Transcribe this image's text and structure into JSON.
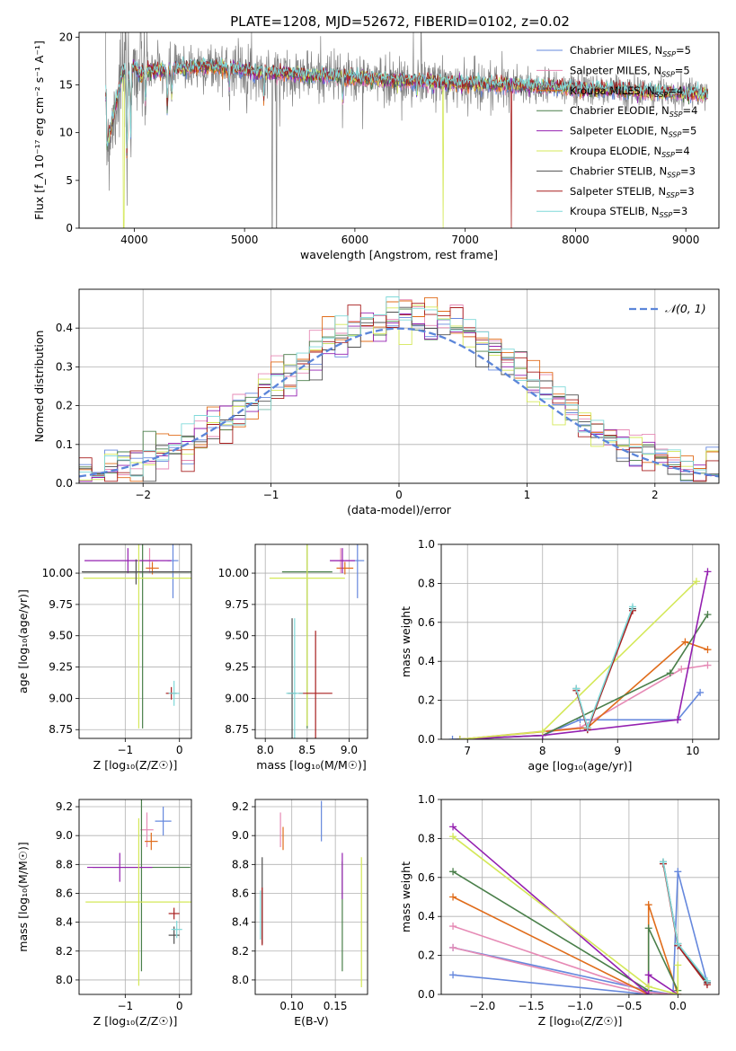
{
  "suptitle": "PLATE=1208, MJD=52672, FIBERID=0102, z=0.02",
  "colors": [
    "#6688dd",
    "#e68ab5",
    "#e06c1a",
    "#4a7f4a",
    "#9420b0",
    "#d4e858",
    "#505050",
    "#a81f1f",
    "#7fd9d9"
  ],
  "chart_data": [
    {
      "id": "spectrum",
      "type": "line",
      "title": "PLATE=1208, MJD=52672, FIBERID=0102, z=0.02",
      "xlabel": "wavelength [Angstrom, rest frame]",
      "ylabel": "Flux [f_λ 10⁻¹⁷ erg cm⁻² s⁻¹ A⁻¹]",
      "xlim": [
        3500,
        9300
      ],
      "ylim": [
        0,
        20.5
      ],
      "xticks": [
        "4000",
        "5000",
        "6000",
        "7000",
        "8000",
        "9000"
      ],
      "xtick_values": [
        4000,
        5000,
        6000,
        7000,
        8000,
        9000
      ],
      "yticks": [
        "0",
        "5",
        "10",
        "15",
        "20"
      ],
      "ytick_values": [
        0,
        5,
        10,
        15,
        20
      ],
      "grid": false,
      "legend_position": "top-right",
      "legend": [
        "Chabrier MILES, N_SSP=5",
        "Salpeter MILES, N_SSP=5",
        "Kroupa MILES, N_SSP=4",
        "Chabrier ELODIE, N_SSP=4",
        "Salpeter ELODIE, N_SSP=5",
        "Kroupa ELODIE, N_SSP=4",
        "Chabrier STELIB, N_SSP=3",
        "Salpeter STELIB, N_SSP=3",
        "Kroupa STELIB, N_SSP=3"
      ],
      "model_x": [
        3750,
        3800,
        3850,
        3900,
        3950,
        4000,
        4050,
        4100,
        4200,
        4300,
        4400,
        4500,
        4600,
        4700,
        4800,
        4900,
        5000,
        5100,
        5200,
        5300,
        5400,
        5500,
        5600,
        5700,
        5800,
        5900,
        6000,
        6100,
        6200,
        6300,
        6400,
        6500,
        6600,
        6700,
        6800,
        6900,
        7000,
        7100,
        7200,
        7300,
        7400,
        7500,
        7600,
        7700,
        7800,
        7900,
        8000,
        8200,
        8400,
        8600,
        8800,
        9000,
        9200
      ],
      "model_y": [
        8.5,
        11,
        14,
        16.5,
        16,
        17,
        16,
        16.5,
        16.5,
        16.5,
        16.7,
        16.8,
        16.9,
        16.9,
        16.8,
        16.8,
        16.6,
        16.4,
        16.3,
        16.2,
        16.2,
        16.1,
        16,
        16,
        15.9,
        15.8,
        15.7,
        15.6,
        15.6,
        15.5,
        15.4,
        15.4,
        15.4,
        15.3,
        15.2,
        15.1,
        15.1,
        15.1,
        15,
        15,
        15,
        14.9,
        14.9,
        14.8,
        14.8,
        14.7,
        14.6,
        14.5,
        14.4,
        14.3,
        14.2,
        14.1,
        14
      ],
      "absorption_lines": [
        {
          "x": 3934,
          "depth": 9.5
        },
        {
          "x": 3968,
          "depth": 6.5
        },
        {
          "x": 4102,
          "depth": 3.5
        },
        {
          "x": 4300,
          "depth": 4.5
        },
        {
          "x": 4340,
          "depth": 2.5
        },
        {
          "x": 4861,
          "depth": 2
        },
        {
          "x": 5175,
          "depth": 3
        },
        {
          "x": 5890,
          "depth": 2.5
        },
        {
          "x": 6563,
          "depth": 1.5
        }
      ],
      "observed_gaps": [
        {
          "x": 5250,
          "flux": 0
        },
        {
          "x": 5290,
          "flux": 0
        }
      ],
      "observed_spikes": [
        {
          "x": 6530,
          "flux": 20.5
        },
        {
          "x": 6600,
          "flux": 20.5
        }
      ],
      "model_dropouts": [
        {
          "x": 3905,
          "series": 5
        },
        {
          "x": 6800,
          "series": 5
        },
        {
          "x": 7420,
          "series": 7
        }
      ]
    },
    {
      "id": "residuals",
      "type": "line",
      "xlabel": "(data-model)/error",
      "ylabel": "Normed distribution",
      "xlim": [
        -2.5,
        2.5
      ],
      "ylim": [
        0,
        0.5
      ],
      "xticks": [
        "−2",
        "−1",
        "0",
        "1",
        "2"
      ],
      "xtick_values": [
        -2,
        -1,
        0,
        1,
        2
      ],
      "yticks": [
        "0.0",
        "0.1",
        "0.2",
        "0.3",
        "0.4"
      ],
      "ytick_values": [
        0,
        0.1,
        0.2,
        0.3,
        0.4
      ],
      "grid": true,
      "legend_position": "top-right",
      "legend": [
        "𝒩(0, 1)"
      ],
      "gaussian_color": "#5b85d9",
      "bin_width": 0.1
    },
    {
      "id": "age-vs-Z",
      "type": "scatter",
      "xlabel": "Z [log₁₀(Z/Z☉)]",
      "ylabel": "age  [log₁₀(age/yr)]",
      "xlim": [
        -1.85,
        0.22
      ],
      "ylim": [
        8.68,
        10.23
      ],
      "xticks": [
        "−1",
        "0"
      ],
      "xtick_values": [
        -1,
        0
      ],
      "yticks": [
        "8.75",
        "9.00",
        "9.25",
        "9.50",
        "9.75",
        "10.00"
      ],
      "ytick_values": [
        8.75,
        9.0,
        9.25,
        9.5,
        9.75,
        10.0
      ],
      "grid": true,
      "points": [
        {
          "series": 0,
          "x": -0.12,
          "y": 10.1,
          "xerr": 0.1,
          "yerr": 0.3
        },
        {
          "series": 1,
          "x": -0.55,
          "y": 10.1,
          "xerr": 0.15,
          "yerr": 0.1
        },
        {
          "series": 2,
          "x": -0.5,
          "y": 10.04,
          "xerr": 0.12,
          "yerr": 0.05
        },
        {
          "series": 3,
          "x": -0.68,
          "y": 10.01,
          "xerr": 1.1,
          "yerr": 1.25
        },
        {
          "series": 4,
          "x": -0.95,
          "y": 10.1,
          "xerr": 0.8,
          "yerr": 0.1
        },
        {
          "series": 5,
          "x": -0.75,
          "y": 9.96,
          "xerr": 1.02,
          "yerr": 1.2
        },
        {
          "series": 6,
          "x": -0.8,
          "y": 10.01,
          "xerr": 1.0,
          "yerr": 0.1
        },
        {
          "series": 7,
          "x": -0.15,
          "y": 9.04,
          "xerr": 0.1,
          "yerr": 0.05
        },
        {
          "series": 8,
          "x": -0.1,
          "y": 9.04,
          "xerr": 0.1,
          "yerr": 0.1
        }
      ]
    },
    {
      "id": "age-vs-mass",
      "type": "scatter",
      "xlabel": "mass [log₁₀(M/M☉)]",
      "ylabel": "",
      "xlim": [
        7.88,
        9.22
      ],
      "ylim": [
        8.68,
        10.23
      ],
      "xticks": [
        "8.0",
        "8.5",
        "9.0"
      ],
      "xtick_values": [
        8.0,
        8.5,
        9.0
      ],
      "yticks": [
        "8.75",
        "9.00",
        "9.25",
        "9.50",
        "9.75",
        "10.00"
      ],
      "ytick_values": [
        8.75,
        9.0,
        9.25,
        9.5,
        9.75,
        10.0
      ],
      "grid": true,
      "points": [
        {
          "series": 0,
          "x": 9.1,
          "y": 10.1,
          "xerr": 0.08,
          "yerr": 0.3
        },
        {
          "series": 1,
          "x": 8.9,
          "y": 10.1,
          "xerr": 0.12,
          "yerr": 0.1
        },
        {
          "series": 2,
          "x": 8.95,
          "y": 10.04,
          "xerr": 0.1,
          "yerr": 0.05
        },
        {
          "series": 3,
          "x": 8.5,
          "y": 10.01,
          "xerr": 0.3,
          "yerr": 1.25
        },
        {
          "series": 4,
          "x": 8.92,
          "y": 10.1,
          "xerr": 0.15,
          "yerr": 0.1
        },
        {
          "series": 5,
          "x": 8.5,
          "y": 9.96,
          "xerr": 0.45,
          "yerr": 1.18
        },
        {
          "series": 6,
          "x": 8.32,
          "y": 9.04,
          "xerr": 0.05,
          "yerr": 0.6
        },
        {
          "series": 7,
          "x": 8.6,
          "y": 9.04,
          "xerr": 0.2,
          "yerr": 0.5
        },
        {
          "series": 8,
          "x": 8.35,
          "y": 9.04,
          "xerr": 0.1,
          "yerr": 0.6
        }
      ]
    },
    {
      "id": "mass-weight-vs-age",
      "type": "line",
      "xlabel": "age  [log₁₀(age/yr)]",
      "ylabel": "mass weight",
      "xlim": [
        6.65,
        10.35
      ],
      "ylim": [
        0,
        1
      ],
      "xticks": [
        "7",
        "8",
        "9",
        "10"
      ],
      "xtick_values": [
        7,
        8,
        9,
        10
      ],
      "yticks": [
        "0.0",
        "0.2",
        "0.4",
        "0.6",
        "0.8",
        "1.0"
      ],
      "ytick_values": [
        0,
        0.2,
        0.4,
        0.6,
        0.8,
        1.0
      ],
      "grid": true,
      "series": [
        {
          "series": 0,
          "x": [
            6.8,
            8.0,
            8.5,
            9.8,
            10.1
          ],
          "y": [
            0.0,
            0.02,
            0.1,
            0.1,
            0.24
          ]
        },
        {
          "series": 1,
          "x": [
            6.9,
            8.5,
            9.85,
            10.2
          ],
          "y": [
            0.0,
            0.06,
            0.36,
            0.38
          ]
        },
        {
          "series": 2,
          "x": [
            6.9,
            8.6,
            9.9,
            10.2
          ],
          "y": [
            0.0,
            0.06,
            0.5,
            0.46
          ]
        },
        {
          "series": 3,
          "x": [
            6.9,
            8.0,
            9.7,
            10.2
          ],
          "y": [
            0.0,
            0.02,
            0.34,
            0.64
          ]
        },
        {
          "series": 4,
          "x": [
            6.9,
            8.0,
            9.8,
            10.2
          ],
          "y": [
            0.0,
            0.02,
            0.1,
            0.86
          ]
        },
        {
          "series": 5,
          "x": [
            6.9,
            8.0,
            10.05
          ],
          "y": [
            0.0,
            0.04,
            0.81
          ]
        },
        {
          "series": 6,
          "x": [
            8.45,
            8.6,
            9.2
          ],
          "y": [
            0.26,
            0.05,
            0.67
          ]
        },
        {
          "series": 7,
          "x": [
            8.45,
            8.6,
            9.2
          ],
          "y": [
            0.25,
            0.05,
            0.66
          ]
        },
        {
          "series": 8,
          "x": [
            8.45,
            8.6,
            9.2
          ],
          "y": [
            0.26,
            0.06,
            0.68
          ]
        }
      ]
    },
    {
      "id": "mass-vs-Z",
      "type": "scatter",
      "xlabel": "Z [log₁₀(Z/Z☉)]",
      "ylabel": "mass [log₁₀(M/M☉)]",
      "xlim": [
        -1.85,
        0.22
      ],
      "ylim": [
        7.9,
        9.25
      ],
      "xticks": [
        "−1",
        "0"
      ],
      "xtick_values": [
        -1,
        0
      ],
      "yticks": [
        "8.0",
        "8.2",
        "8.4",
        "8.6",
        "8.8",
        "9.0",
        "9.2"
      ],
      "ytick_values": [
        8.0,
        8.2,
        8.4,
        8.6,
        8.8,
        9.0,
        9.2
      ],
      "grid": true,
      "points": [
        {
          "series": 0,
          "x": -0.3,
          "y": 9.1,
          "xerr": 0.15,
          "yerr": 0.1
        },
        {
          "series": 1,
          "x": -0.6,
          "y": 9.04,
          "xerr": 0.12,
          "yerr": 0.12
        },
        {
          "series": 2,
          "x": -0.52,
          "y": 8.96,
          "xerr": 0.12,
          "yerr": 0.06
        },
        {
          "series": 3,
          "x": -0.7,
          "y": 8.78,
          "xerr": 0.9,
          "yerr": 0.72
        },
        {
          "series": 4,
          "x": -1.1,
          "y": 8.78,
          "xerr": 0.6,
          "yerr": 0.1
        },
        {
          "series": 5,
          "x": -0.75,
          "y": 8.54,
          "xerr": 0.98,
          "yerr": 0.58
        },
        {
          "series": 6,
          "x": -0.1,
          "y": 8.31,
          "xerr": 0.1,
          "yerr": 0.06
        },
        {
          "series": 7,
          "x": -0.1,
          "y": 8.46,
          "xerr": 0.1,
          "yerr": 0.04
        },
        {
          "series": 8,
          "x": -0.05,
          "y": 8.35,
          "xerr": 0.1,
          "yerr": 0.06
        }
      ]
    },
    {
      "id": "mass-vs-EBV",
      "type": "scatter",
      "xlabel": "E(B-V)",
      "ylabel": "",
      "xlim": [
        0.058,
        0.187
      ],
      "ylim": [
        7.9,
        9.25
      ],
      "xticks": [
        "0.10",
        "0.15"
      ],
      "xtick_values": [
        0.1,
        0.15
      ],
      "yticks": [
        "8.0",
        "8.2",
        "8.4",
        "8.6",
        "8.8",
        "9.0",
        "9.2"
      ],
      "ytick_values": [
        8.0,
        8.2,
        8.4,
        8.6,
        8.8,
        9.0,
        9.2
      ],
      "grid": true,
      "points": [
        {
          "series": 0,
          "x": 0.134,
          "y": 9.1,
          "xerr": 0,
          "yerr": 0.14
        },
        {
          "series": 1,
          "x": 0.087,
          "y": 9.04,
          "xerr": 0,
          "yerr": 0.12
        },
        {
          "series": 2,
          "x": 0.09,
          "y": 8.98,
          "xerr": 0,
          "yerr": 0.08
        },
        {
          "series": 3,
          "x": 0.158,
          "y": 8.44,
          "xerr": 0,
          "yerr": 0.38
        },
        {
          "series": 4,
          "x": 0.158,
          "y": 8.72,
          "xerr": 0,
          "yerr": 0.16
        },
        {
          "series": 5,
          "x": 0.18,
          "y": 8.4,
          "xerr": 0,
          "yerr": 0.45
        },
        {
          "series": 6,
          "x": 0.066,
          "y": 8.55,
          "xerr": 0,
          "yerr": 0.3
        },
        {
          "series": 7,
          "x": 0.066,
          "y": 8.44,
          "xerr": 0,
          "yerr": 0.2
        },
        {
          "series": 8,
          "x": 0.064,
          "y": 8.45,
          "xerr": 0,
          "yerr": 0.17
        }
      ]
    },
    {
      "id": "mass-weight-vs-Z",
      "type": "line",
      "xlabel": "Z [log₁₀(Z/Z☉)]",
      "ylabel": "mass weight",
      "xlim": [
        -2.42,
        0.42
      ],
      "ylim": [
        0,
        1
      ],
      "xticks": [
        "−2.0",
        "−1.5",
        "−1.0",
        "−0.5",
        "0.0"
      ],
      "xtick_values": [
        -2.0,
        -1.5,
        -1.0,
        -0.5,
        0.0
      ],
      "yticks": [
        "0.0",
        "0.2",
        "0.4",
        "0.6",
        "0.8",
        "1.0"
      ],
      "ytick_values": [
        0,
        0.2,
        0.4,
        0.6,
        0.8,
        1.0
      ],
      "grid": true,
      "series": [
        {
          "series": 0,
          "x": [
            -2.3,
            -0.3,
            -0.05,
            0.0,
            0.3
          ],
          "y": [
            0.24,
            0.02,
            0.0,
            0.63,
            0.06
          ]
        },
        {
          "series": 0,
          "x": [
            -2.3,
            -0.3
          ],
          "y": [
            0.1,
            0.0
          ]
        },
        {
          "series": 1,
          "x": [
            -2.3,
            -0.3,
            0.0
          ],
          "y": [
            0.35,
            0.01,
            0.0
          ]
        },
        {
          "series": 1,
          "x": [
            -2.3,
            -0.3
          ],
          "y": [
            0.24,
            0.0
          ]
        },
        {
          "series": 2,
          "x": [
            -2.3,
            -0.3,
            -0.3,
            0.0
          ],
          "y": [
            0.5,
            0.0,
            0.46,
            0.0
          ]
        },
        {
          "series": 3,
          "x": [
            -2.3,
            -0.3,
            -0.3,
            0.0
          ],
          "y": [
            0.63,
            0.02,
            0.34,
            0.02
          ]
        },
        {
          "series": 4,
          "x": [
            -2.3,
            -0.3,
            -0.3,
            0.0
          ],
          "y": [
            0.86,
            0.0,
            0.1,
            0.0
          ]
        },
        {
          "series": 5,
          "x": [
            -2.3,
            -0.3,
            0.0,
            0.0
          ],
          "y": [
            0.81,
            0.04,
            0.0,
            0.15
          ]
        },
        {
          "series": 6,
          "x": [
            -0.15,
            0.0,
            0.3
          ],
          "y": [
            0.68,
            0.26,
            0.06
          ]
        },
        {
          "series": 7,
          "x": [
            -0.15,
            0.0,
            0.3
          ],
          "y": [
            0.67,
            0.25,
            0.05
          ]
        },
        {
          "series": 8,
          "x": [
            -0.15,
            0.0,
            0.3
          ],
          "y": [
            0.68,
            0.26,
            0.07
          ]
        }
      ]
    }
  ]
}
